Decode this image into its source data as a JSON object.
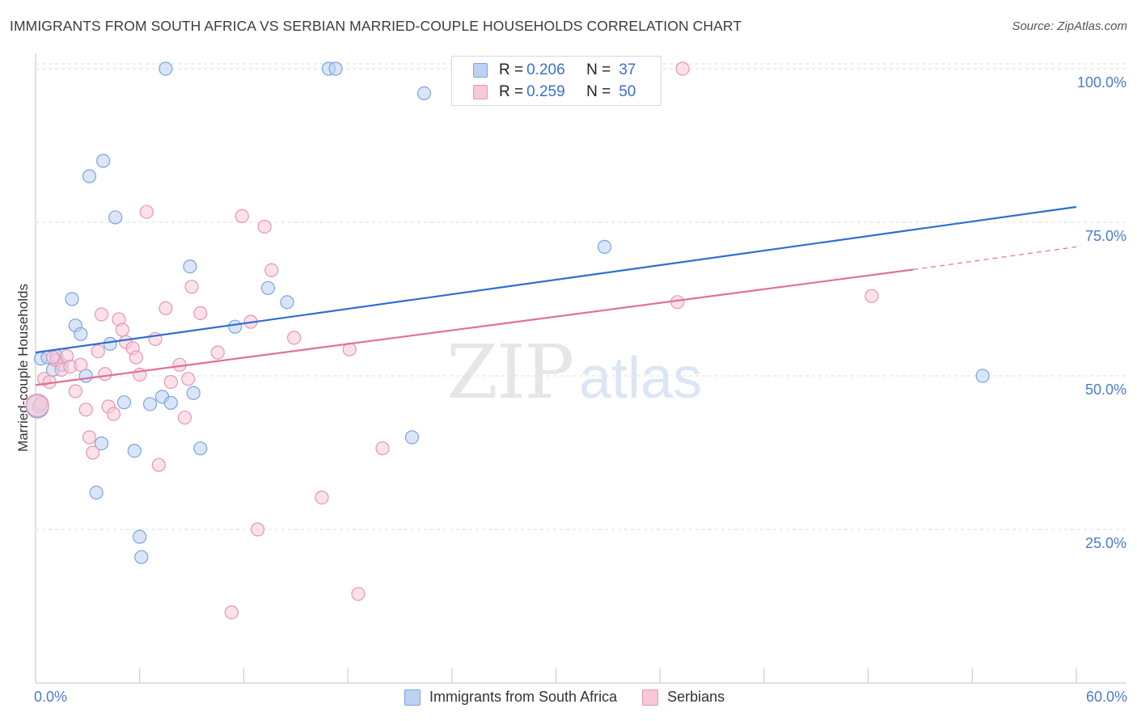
{
  "title": "IMMIGRANTS FROM SOUTH AFRICA VS SERBIAN MARRIED-COUPLE HOUSEHOLDS CORRELATION CHART",
  "source": "Source: ZipAtlas.com",
  "watermark": {
    "zip": "ZIP",
    "atlas": "atlas"
  },
  "legend": {
    "rows": [
      {
        "r_label": "R = ",
        "r_value": "0.206",
        "n_label": "N = ",
        "n_value": "37"
      },
      {
        "r_label": "R = ",
        "r_value": "0.259",
        "n_label": "N = ",
        "n_value": "50"
      }
    ]
  },
  "bottom_legend": [
    "Immigrants from South Africa",
    "Serbians"
  ],
  "colors": {
    "blue_fill": "#bcd2f3",
    "blue_stroke": "#7aa3e0",
    "blue_line": "#2f6fd0",
    "pink_fill": "#f9c8d8",
    "pink_stroke": "#e795b0",
    "pink_line": "#e0709a",
    "axis_text": "#4a7bd0",
    "grid": "#dcdcdc"
  },
  "chart_data": {
    "type": "scatter",
    "title": "IMMIGRANTS FROM SOUTH AFRICA VS SERBIAN MARRIED-COUPLE HOUSEHOLDS CORRELATION CHART",
    "xlabel": "",
    "ylabel": "Married-couple Households",
    "x_tick_labels": [
      "0.0%",
      "60.0%"
    ],
    "y_tick_labels": [
      "100.0%",
      "75.0%",
      "50.0%",
      "25.0%"
    ],
    "y_ticks": [
      100,
      75,
      50,
      25
    ],
    "xlim": [
      0,
      60
    ],
    "ylim": [
      0,
      102.5
    ],
    "grid": true,
    "series": [
      {
        "name": "Immigrants from South Africa",
        "r": 0.206,
        "n": 37,
        "trend": {
          "x0": 0,
          "y0": 53.8,
          "x1": 60,
          "y1": 77.5
        },
        "points": [
          [
            0.2,
            45.0
          ],
          [
            0.3,
            52.8
          ],
          [
            0.7,
            53.0
          ],
          [
            1.0,
            51.0
          ],
          [
            1.2,
            53.2
          ],
          [
            1.5,
            51.8
          ],
          [
            2.1,
            62.5
          ],
          [
            2.3,
            58.2
          ],
          [
            2.6,
            56.8
          ],
          [
            2.9,
            50.0
          ],
          [
            3.1,
            82.5
          ],
          [
            3.5,
            31.0
          ],
          [
            3.8,
            39.0
          ],
          [
            3.9,
            85.0
          ],
          [
            4.3,
            55.2
          ],
          [
            4.6,
            75.8
          ],
          [
            5.1,
            45.7
          ],
          [
            5.7,
            37.8
          ],
          [
            6.0,
            23.8
          ],
          [
            6.1,
            20.5
          ],
          [
            6.6,
            45.4
          ],
          [
            7.3,
            46.6
          ],
          [
            7.5,
            100.0
          ],
          [
            7.8,
            45.6
          ],
          [
            8.9,
            67.8
          ],
          [
            9.1,
            47.2
          ],
          [
            9.5,
            38.2
          ],
          [
            11.5,
            58.0
          ],
          [
            13.4,
            64.3
          ],
          [
            14.5,
            62.0
          ],
          [
            16.9,
            100.0
          ],
          [
            17.3,
            100.0
          ],
          [
            21.7,
            40.0
          ],
          [
            22.4,
            96.0
          ],
          [
            32.8,
            71.0
          ],
          [
            54.6,
            50.0
          ],
          [
            0.1,
            45.0
          ]
        ]
      },
      {
        "name": "Serbians",
        "r": 0.259,
        "n": 50,
        "trend": {
          "x0": 0,
          "y0": 48.5,
          "x1": 50.6,
          "y1": 67.3
        },
        "trend_dashed": {
          "x0": 50.6,
          "y0": 67.3,
          "x1": 60,
          "y1": 71.0
        },
        "points": [
          [
            0.3,
            45.5
          ],
          [
            0.5,
            49.5
          ],
          [
            0.8,
            49.0
          ],
          [
            1.2,
            52.5
          ],
          [
            1.5,
            51.0
          ],
          [
            1.8,
            53.2
          ],
          [
            2.0,
            51.5
          ],
          [
            2.3,
            47.5
          ],
          [
            2.6,
            51.8
          ],
          [
            2.9,
            44.5
          ],
          [
            3.1,
            40.0
          ],
          [
            3.3,
            37.5
          ],
          [
            3.6,
            54.0
          ],
          [
            3.8,
            60.0
          ],
          [
            4.0,
            50.3
          ],
          [
            4.2,
            45.0
          ],
          [
            4.5,
            43.8
          ],
          [
            4.8,
            59.2
          ],
          [
            5.0,
            57.5
          ],
          [
            5.2,
            55.5
          ],
          [
            5.6,
            54.5
          ],
          [
            5.8,
            53.0
          ],
          [
            6.0,
            50.2
          ],
          [
            6.4,
            76.7
          ],
          [
            6.9,
            56.0
          ],
          [
            7.1,
            35.5
          ],
          [
            7.5,
            61.0
          ],
          [
            7.8,
            49.0
          ],
          [
            8.3,
            51.8
          ],
          [
            8.6,
            43.2
          ],
          [
            8.8,
            49.5
          ],
          [
            9.0,
            64.5
          ],
          [
            9.5,
            60.2
          ],
          [
            10.5,
            53.8
          ],
          [
            11.3,
            11.5
          ],
          [
            11.9,
            76.0
          ],
          [
            12.4,
            58.8
          ],
          [
            12.8,
            25.0
          ],
          [
            13.2,
            74.3
          ],
          [
            13.6,
            67.2
          ],
          [
            14.9,
            56.2
          ],
          [
            16.5,
            30.2
          ],
          [
            18.1,
            54.3
          ],
          [
            18.6,
            14.5
          ],
          [
            20.0,
            38.2
          ],
          [
            37.0,
            62.0
          ],
          [
            37.3,
            100.0
          ],
          [
            48.2,
            63.0
          ],
          [
            0.1,
            45.2
          ],
          [
            1.0,
            53.0
          ]
        ]
      }
    ]
  }
}
